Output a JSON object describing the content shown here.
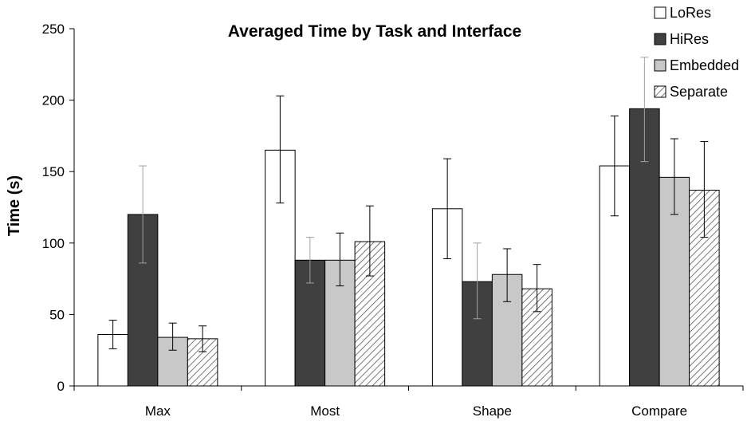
{
  "chart_data": {
    "type": "bar",
    "title": "Averaged Time by Task and Interface",
    "xlabel": "",
    "ylabel": "Time (s)",
    "ylim": [
      0,
      250
    ],
    "yticks": [
      0,
      50,
      100,
      150,
      200,
      250
    ],
    "grid": false,
    "legend_position": "top-right",
    "categories": [
      "Max",
      "Most",
      "Shape",
      "Compare"
    ],
    "series": [
      {
        "name": "LoRes",
        "fill": "#ffffff",
        "pattern": "none",
        "values": [
          36,
          165,
          124,
          154
        ],
        "error": [
          [
            26,
            46
          ],
          [
            128,
            203
          ],
          [
            89,
            159
          ],
          [
            119,
            189
          ]
        ]
      },
      {
        "name": "HiRes",
        "fill": "#404040",
        "pattern": "none",
        "values": [
          120,
          88,
          73,
          194
        ],
        "error": [
          [
            86,
            154
          ],
          [
            72,
            104
          ],
          [
            47,
            100
          ],
          [
            157,
            230
          ]
        ]
      },
      {
        "name": "Embedded",
        "fill": "#c8c8c8",
        "pattern": "none",
        "values": [
          34,
          88,
          78,
          146
        ],
        "error": [
          [
            25,
            44
          ],
          [
            70,
            107
          ],
          [
            59,
            96
          ],
          [
            120,
            173
          ]
        ]
      },
      {
        "name": "Separate",
        "fill": "#ffffff",
        "pattern": "hatch",
        "values": [
          33,
          101,
          68,
          137
        ],
        "error": [
          [
            24,
            42
          ],
          [
            77,
            126
          ],
          [
            52,
            85
          ],
          [
            104,
            171
          ]
        ]
      }
    ]
  }
}
